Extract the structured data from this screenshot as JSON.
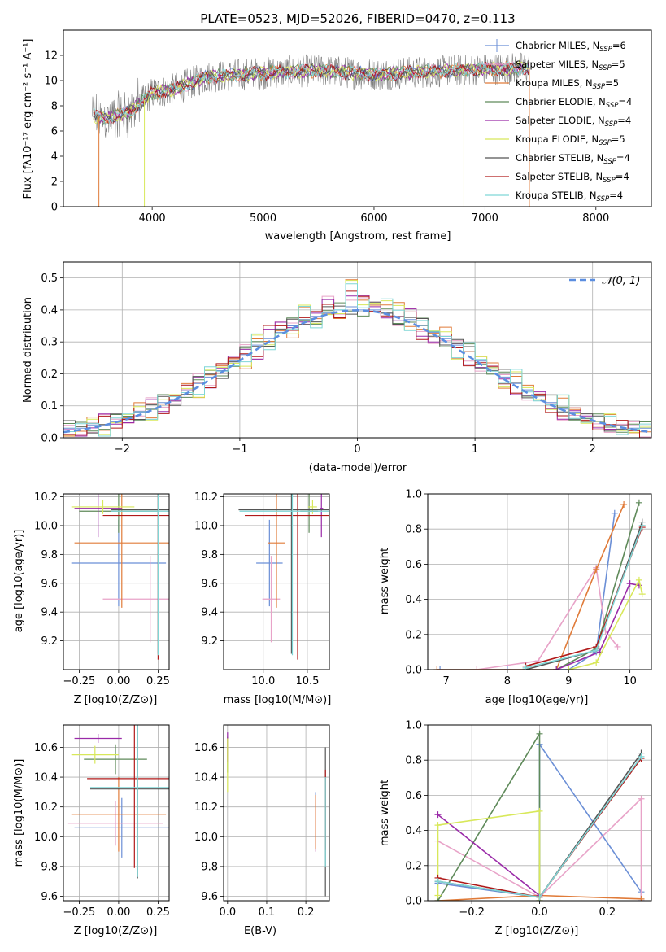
{
  "title": "PLATE=0523, MJD=52026, FIBERID=0470, z=0.113",
  "colors": {
    "chabrier_miles": "#6b8fd6",
    "salpeter_miles": "#e8a3c8",
    "kroupa_miles": "#e07b39",
    "chabrier_elodie": "#5f8a5a",
    "salpeter_elodie": "#9a2aa8",
    "kroupa_elodie": "#d8e85a",
    "chabrier_stelib": "#555555",
    "salpeter_stelib": "#b01a1a",
    "kroupa_stelib": "#7fd6d6",
    "gaussian": "#5b8ee0",
    "grid": "#b0b0b0"
  },
  "panels": {
    "spectrum": {
      "ylabel": "Flux [fλ10⁻¹⁷ erg cm⁻² s⁻¹ A⁻¹]",
      "xlabel": "wavelength [Angstrom, rest frame]",
      "legend": [
        "Chabrier MILES, N_SSP=6",
        "Salpeter MILES, N_SSP=5",
        "Kroupa MILES, N_SSP=5",
        "Chabrier ELODIE, N_SSP=4",
        "Salpeter ELODIE, N_SSP=4",
        "Kroupa ELODIE, N_SSP=5",
        "Chabrier STELIB, N_SSP=4",
        "Salpeter STELIB, N_SSP=4",
        "Kroupa STELIB, N_SSP=4"
      ]
    },
    "hist": {
      "ylabel": "Normed distribution",
      "xlabel": "(data-model)/error",
      "legend": "𝒩(0, 1)"
    },
    "age_z": {
      "ylabel": "age  [log10(age/yr)]",
      "xlabel": "Z [log10(Z/Z⊙)]"
    },
    "age_mass": {
      "xlabel": "mass [log10(M/M⊙)]"
    },
    "weight_age": {
      "ylabel": "mass weight",
      "xlabel": "age  [log10(age/yr)]"
    },
    "mass_z": {
      "ylabel": "mass [log10(M/M⊙)]",
      "xlabel": "Z [log10(Z/Z⊙)]"
    },
    "mass_ebv": {
      "xlabel": "E(B-V)"
    },
    "weight_z": {
      "ylabel": "mass weight",
      "xlabel": "Z [log10(Z/Z⊙)]"
    }
  },
  "chart_data": [
    {
      "type": "line",
      "name": "spectrum",
      "xlim": [
        3200,
        8500
      ],
      "ylim": [
        0,
        14
      ],
      "xticks": [
        4000,
        5000,
        6000,
        7000,
        8000
      ],
      "yticks": [
        0,
        2,
        4,
        6,
        8,
        10,
        12
      ],
      "grid": false,
      "legend_loc": "upper right",
      "note": "observed spectrum plus 9 model fits; continuum rises from about 7 at 3500 A to about 10.5 at 4500 A then stays near 10 to 11.5 until the red end near 7450 A",
      "continuum": {
        "x": [
          3460,
          3600,
          3800,
          4000,
          4200,
          4500,
          5000,
          5500,
          6000,
          6500,
          7000,
          7400
        ],
        "y": [
          7.2,
          7.0,
          7.5,
          9.0,
          9.3,
          10.3,
          10.6,
          10.8,
          10.5,
          10.7,
          10.9,
          11.0
        ]
      }
    },
    {
      "type": "bar",
      "name": "residual_histograms",
      "xlim": [
        -2.5,
        2.5
      ],
      "ylim": [
        0,
        0.55
      ],
      "xticks": [
        -2,
        -1,
        0,
        1,
        2
      ],
      "yticks": [
        0.0,
        0.1,
        0.2,
        0.3,
        0.4,
        0.5
      ],
      "grid": true,
      "legend_loc": "upper right",
      "gaussian": {
        "mean": 0,
        "sigma": 1
      },
      "bins_center": [
        -2.45,
        -2.35,
        -2.25,
        -2.15,
        -2.05,
        -1.95,
        -1.85,
        -1.75,
        -1.65,
        -1.55,
        -1.45,
        -1.35,
        -1.25,
        -1.15,
        -1.05,
        -0.95,
        -0.85,
        -0.75,
        -0.65,
        -0.55,
        -0.45,
        -0.35,
        -0.25,
        -0.15,
        -0.05,
        0.05,
        0.15,
        0.25,
        0.35,
        0.45,
        0.55,
        0.65,
        0.75,
        0.85,
        0.95,
        1.05,
        1.15,
        1.25,
        1.35,
        1.45,
        1.55,
        1.65,
        1.75,
        1.85,
        1.95,
        2.05,
        2.15,
        2.25,
        2.35,
        2.45
      ],
      "series": [
        {
          "values": [
            0.03,
            0.03,
            0.04,
            0.04,
            0.05,
            0.06,
            0.08,
            0.09,
            0.11,
            0.12,
            0.15,
            0.17,
            0.19,
            0.21,
            0.24,
            0.26,
            0.29,
            0.31,
            0.33,
            0.35,
            0.37,
            0.38,
            0.39,
            0.4,
            0.41,
            0.4,
            0.4,
            0.39,
            0.38,
            0.37,
            0.35,
            0.33,
            0.31,
            0.29,
            0.27,
            0.24,
            0.22,
            0.19,
            0.17,
            0.15,
            0.13,
            0.11,
            0.09,
            0.08,
            0.06,
            0.05,
            0.04,
            0.04,
            0.03,
            0.03
          ]
        },
        {
          "values": [
            0.02,
            0.03,
            0.03,
            0.05,
            0.05,
            0.07,
            0.07,
            0.1,
            0.1,
            0.13,
            0.14,
            0.18,
            0.18,
            0.22,
            0.23,
            0.28,
            0.27,
            0.33,
            0.34,
            0.36,
            0.38,
            0.37,
            0.42,
            0.4,
            0.45,
            0.42,
            0.41,
            0.4,
            0.36,
            0.38,
            0.33,
            0.32,
            0.3,
            0.28,
            0.25,
            0.23,
            0.2,
            0.18,
            0.16,
            0.13,
            0.12,
            0.1,
            0.08,
            0.07,
            0.05,
            0.05,
            0.04,
            0.03,
            0.03,
            0.02
          ]
        },
        {
          "values": [
            0.03,
            0.02,
            0.04,
            0.03,
            0.06,
            0.05,
            0.09,
            0.08,
            0.12,
            0.11,
            0.16,
            0.15,
            0.2,
            0.2,
            0.25,
            0.24,
            0.3,
            0.28,
            0.35,
            0.33,
            0.39,
            0.36,
            0.41,
            0.38,
            0.47,
            0.43,
            0.44,
            0.41,
            0.4,
            0.36,
            0.36,
            0.31,
            0.33,
            0.27,
            0.28,
            0.23,
            0.23,
            0.18,
            0.19,
            0.14,
            0.14,
            0.1,
            0.11,
            0.07,
            0.07,
            0.05,
            0.05,
            0.03,
            0.04,
            0.02
          ]
        }
      ]
    },
    {
      "type": "scatter",
      "name": "age_vs_Z",
      "xlim": [
        -0.35,
        0.32
      ],
      "ylim": [
        9.0,
        10.22
      ],
      "xticks": [
        -0.25,
        0.0,
        0.25
      ],
      "yticks": [
        9.2,
        9.4,
        9.6,
        9.8,
        10.0,
        10.2
      ],
      "grid": true,
      "points": [
        {
          "x": 0.0,
          "y": 9.74,
          "xerr": 0.3,
          "yerr": 0.3,
          "color": "chabrier_miles"
        },
        {
          "x": 0.2,
          "y": 9.49,
          "xerr": 0.3,
          "yerr": 0.3,
          "color": "salpeter_miles"
        },
        {
          "x": 0.02,
          "y": 9.88,
          "xerr": 0.3,
          "yerr": 0.45,
          "color": "kroupa_miles"
        },
        {
          "x": 0.0,
          "y": 10.1,
          "xerr": 0.25,
          "yerr": 0.15,
          "color": "chabrier_elodie"
        },
        {
          "x": -0.13,
          "y": 10.12,
          "xerr": 0.15,
          "yerr": 0.2,
          "color": "salpeter_elodie"
        },
        {
          "x": -0.1,
          "y": 10.13,
          "xerr": 0.2,
          "yerr": 0.05,
          "color": "kroupa_elodie"
        },
        {
          "x": 0.25,
          "y": 10.11,
          "xerr": 0.3,
          "yerr": 1.0,
          "color": "chabrier_stelib"
        },
        {
          "x": 0.25,
          "y": 10.07,
          "xerr": 0.35,
          "yerr": 1.0,
          "color": "salpeter_stelib"
        },
        {
          "x": 0.25,
          "y": 10.1,
          "xerr": 0.3,
          "yerr": 1.0,
          "color": "kroupa_stelib"
        }
      ]
    },
    {
      "type": "scatter",
      "name": "age_vs_mass",
      "xlim": [
        9.55,
        10.75
      ],
      "ylim": [
        9.0,
        10.22
      ],
      "xticks": [
        10.0,
        10.5
      ],
      "yticks": [
        9.2,
        9.4,
        9.6,
        9.8,
        10.0,
        10.2
      ],
      "grid": true,
      "points": [
        {
          "x": 10.07,
          "y": 9.74,
          "xerr": 0.15,
          "yerr": 0.3,
          "color": "chabrier_miles"
        },
        {
          "x": 10.09,
          "y": 9.49,
          "xerr": 0.1,
          "yerr": 0.3,
          "color": "salpeter_miles"
        },
        {
          "x": 10.15,
          "y": 9.88,
          "xerr": 0.1,
          "yerr": 0.45,
          "color": "kroupa_miles"
        },
        {
          "x": 10.52,
          "y": 10.1,
          "xerr": 0.1,
          "yerr": 0.15,
          "color": "chabrier_elodie"
        },
        {
          "x": 10.66,
          "y": 10.12,
          "xerr": 0.02,
          "yerr": 0.2,
          "color": "salpeter_elodie"
        },
        {
          "x": 10.56,
          "y": 10.13,
          "xerr": 0.05,
          "yerr": 0.05,
          "color": "kroupa_elodie"
        },
        {
          "x": 10.32,
          "y": 10.11,
          "xerr": 0.6,
          "yerr": 1.0,
          "color": "chabrier_stelib"
        },
        {
          "x": 10.39,
          "y": 10.07,
          "xerr": 0.6,
          "yerr": 1.0,
          "color": "salpeter_stelib"
        },
        {
          "x": 10.33,
          "y": 10.1,
          "xerr": 0.6,
          "yerr": 1.0,
          "color": "kroupa_stelib"
        }
      ]
    },
    {
      "type": "line",
      "name": "mass_weight_vs_age",
      "xlim": [
        6.7,
        10.35
      ],
      "ylim": [
        0,
        1.0
      ],
      "xticks": [
        7,
        8,
        9,
        10
      ],
      "yticks": [
        0.0,
        0.2,
        0.4,
        0.6,
        0.8,
        1.0
      ],
      "grid": true,
      "series": [
        {
          "color": "chabrier_miles",
          "x": [
            6.9,
            8.0,
            9.0,
            9.45,
            9.75
          ],
          "y": [
            0.0,
            0.0,
            0.0,
            0.1,
            0.89
          ]
        },
        {
          "color": "salpeter_miles",
          "x": [
            7.5,
            8.5,
            9.45,
            9.6,
            9.8
          ],
          "y": [
            0.0,
            0.05,
            0.58,
            0.22,
            0.13
          ]
        },
        {
          "color": "kroupa_miles",
          "x": [
            6.85,
            8.8,
            9.45,
            9.9
          ],
          "y": [
            0.0,
            0.0,
            0.57,
            0.94
          ]
        },
        {
          "color": "chabrier_elodie",
          "x": [
            8.8,
            9.45,
            10.15
          ],
          "y": [
            0.0,
            0.12,
            0.95
          ]
        },
        {
          "color": "salpeter_elodie",
          "x": [
            8.8,
            9.5,
            10.0,
            10.15
          ],
          "y": [
            0.0,
            0.1,
            0.49,
            0.48
          ]
        },
        {
          "color": "kroupa_elodie",
          "x": [
            9.0,
            9.45,
            10.15,
            10.2
          ],
          "y": [
            0.0,
            0.04,
            0.51,
            0.43
          ]
        },
        {
          "color": "chabrier_stelib",
          "x": [
            8.3,
            9.45,
            10.2
          ],
          "y": [
            0.0,
            0.11,
            0.84
          ]
        },
        {
          "color": "salpeter_stelib",
          "x": [
            8.3,
            9.45,
            10.2
          ],
          "y": [
            0.02,
            0.13,
            0.81
          ]
        },
        {
          "color": "kroupa_stelib",
          "x": [
            8.3,
            9.45,
            10.2
          ],
          "y": [
            0.01,
            0.11,
            0.82
          ]
        }
      ]
    },
    {
      "type": "scatter",
      "name": "mass_vs_Z",
      "xlim": [
        -0.35,
        0.32
      ],
      "ylim": [
        9.57,
        10.75
      ],
      "xticks": [
        -0.25,
        0.0,
        0.25
      ],
      "yticks": [
        9.6,
        9.8,
        10.0,
        10.2,
        10.4,
        10.6
      ],
      "grid": true,
      "points": [
        {
          "x": 0.02,
          "y": 10.06,
          "xerr": 0.3,
          "yerr": 0.2,
          "color": "chabrier_miles"
        },
        {
          "x": -0.02,
          "y": 10.09,
          "xerr": 0.3,
          "yerr": 0.15,
          "color": "salpeter_miles"
        },
        {
          "x": 0.0,
          "y": 10.15,
          "xerr": 0.3,
          "yerr": 0.25,
          "color": "kroupa_miles"
        },
        {
          "x": -0.02,
          "y": 10.52,
          "xerr": 0.2,
          "yerr": 0.1,
          "color": "chabrier_elodie"
        },
        {
          "x": -0.13,
          "y": 10.66,
          "xerr": 0.15,
          "yerr": 0.03,
          "color": "salpeter_elodie"
        },
        {
          "x": -0.15,
          "y": 10.55,
          "xerr": 0.15,
          "yerr": 0.06,
          "color": "kroupa_elodie"
        },
        {
          "x": 0.12,
          "y": 10.32,
          "xerr": 0.3,
          "yerr": 0.6,
          "color": "chabrier_stelib"
        },
        {
          "x": 0.1,
          "y": 10.39,
          "xerr": 0.3,
          "yerr": 0.6,
          "color": "salpeter_stelib"
        },
        {
          "x": 0.12,
          "y": 10.33,
          "xerr": 0.3,
          "yerr": 0.6,
          "color": "kroupa_stelib"
        }
      ]
    },
    {
      "type": "scatter",
      "name": "mass_vs_EBV",
      "xlim": [
        -0.01,
        0.26
      ],
      "ylim": [
        9.57,
        10.75
      ],
      "xticks": [
        0.0,
        0.1,
        0.2
      ],
      "yticks": [
        9.6,
        9.8,
        10.0,
        10.2,
        10.4,
        10.6
      ],
      "grid": true,
      "points": [
        {
          "x": 0.225,
          "y": 10.1,
          "yerr": 0.2,
          "color": "chabrier_miles"
        },
        {
          "x": 0.225,
          "y": 10.08,
          "yerr": 0.18,
          "color": "salpeter_miles"
        },
        {
          "x": 0.225,
          "y": 10.1,
          "yerr": 0.18,
          "color": "kroupa_miles"
        },
        {
          "x": 0.0,
          "y": 10.55,
          "yerr": 0.12,
          "color": "chabrier_elodie"
        },
        {
          "x": 0.0,
          "y": 10.6,
          "yerr": 0.1,
          "color": "salpeter_elodie"
        },
        {
          "x": 0.0,
          "y": 10.48,
          "yerr": 0.18,
          "color": "kroupa_elodie"
        },
        {
          "x": 0.25,
          "y": 10.1,
          "yerr": 0.5,
          "color": "chabrier_stelib"
        },
        {
          "x": 0.25,
          "y": 10.18,
          "yerr": 0.27,
          "color": "salpeter_stelib"
        },
        {
          "x": 0.25,
          "y": 10.1,
          "yerr": 0.3,
          "color": "kroupa_stelib"
        }
      ]
    },
    {
      "type": "line",
      "name": "mass_weight_vs_Z",
      "xlim": [
        -0.33,
        0.33
      ],
      "ylim": [
        0,
        1.0
      ],
      "xticks": [
        -0.2,
        0.0,
        0.2
      ],
      "yticks": [
        0.0,
        0.2,
        0.4,
        0.6,
        0.8,
        1.0
      ],
      "grid": true,
      "series": [
        {
          "color": "chabrier_miles",
          "x": [
            -0.3,
            0.0,
            0.0,
            0.3,
            0.3
          ],
          "y": [
            0.1,
            0.02,
            0.89,
            0.05,
            0.0
          ]
        },
        {
          "color": "salpeter_miles",
          "x": [
            -0.3,
            0.0,
            0.3,
            0.3
          ],
          "y": [
            0.34,
            0.02,
            0.58,
            0.0
          ]
        },
        {
          "color": "kroupa_miles",
          "x": [
            -0.3,
            0.0,
            0.3
          ],
          "y": [
            0.0,
            0.03,
            0.01
          ]
        },
        {
          "color": "chabrier_elodie",
          "x": [
            -0.3,
            0.0,
            0.0
          ],
          "y": [
            0.0,
            0.95,
            0.0
          ]
        },
        {
          "color": "salpeter_elodie",
          "x": [
            -0.3,
            0.0
          ],
          "y": [
            0.49,
            0.03
          ]
        },
        {
          "color": "kroupa_elodie",
          "x": [
            -0.3,
            -0.3,
            0.0,
            0.0
          ],
          "y": [
            0.03,
            0.43,
            0.51,
            0.0
          ]
        },
        {
          "color": "chabrier_stelib",
          "x": [
            -0.3,
            0.0,
            0.3
          ],
          "y": [
            0.11,
            0.02,
            0.84
          ]
        },
        {
          "color": "salpeter_stelib",
          "x": [
            -0.3,
            0.0,
            0.3
          ],
          "y": [
            0.13,
            0.02,
            0.81
          ]
        },
        {
          "color": "kroupa_stelib",
          "x": [
            -0.3,
            0.0,
            0.3
          ],
          "y": [
            0.11,
            0.02,
            0.82
          ]
        }
      ]
    }
  ]
}
